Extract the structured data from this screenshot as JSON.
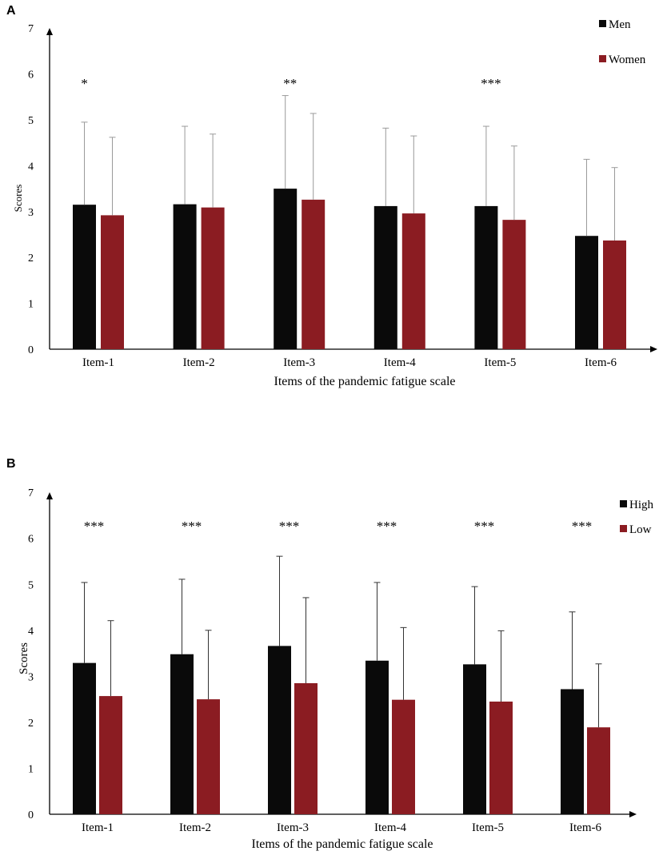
{
  "colors": {
    "series1": "#0a0a0a",
    "series2": "#8b1c22",
    "axis": "#000000",
    "errorbar_a": "#9a9a9a",
    "errorbar_b": "#333333"
  },
  "chart_data": [
    {
      "panel": "A",
      "type": "bar",
      "title": "",
      "xlabel": "Items of the pandemic fatigue scale",
      "ylabel": "Scores",
      "ylim": [
        0,
        7
      ],
      "yticks": [
        "0",
        "1",
        "2",
        "3",
        "4",
        "5",
        "6",
        "7"
      ],
      "categories": [
        "Item-1",
        "Item-2",
        "Item-3",
        "Item-4",
        "Item-5",
        "Item-6"
      ],
      "legend_position": "top-right",
      "series": [
        {
          "name": "Men",
          "values": [
            3.15,
            3.16,
            3.5,
            3.12,
            3.12,
            2.47
          ],
          "error_upper": [
            4.95,
            4.86,
            5.53,
            4.82,
            4.86,
            4.14
          ]
        },
        {
          "name": "Women",
          "values": [
            2.92,
            3.09,
            3.26,
            2.96,
            2.82,
            2.37
          ],
          "error_upper": [
            4.62,
            4.69,
            5.14,
            4.65,
            4.43,
            3.96
          ]
        }
      ],
      "annotations": [
        "*",
        "",
        "**",
        "",
        "***",
        ""
      ]
    },
    {
      "panel": "B",
      "type": "bar",
      "title": "",
      "xlabel": "Items of the pandemic fatigue scale",
      "ylabel": "Scores",
      "ylim": [
        0,
        7
      ],
      "yticks": [
        "0",
        "1",
        "2",
        "3",
        "4",
        "5",
        "6",
        "7"
      ],
      "categories": [
        "Item-1",
        "Item-2",
        "Item-3",
        "Item-4",
        "Item-5",
        "Item-6"
      ],
      "legend_position": "top-right",
      "series": [
        {
          "name": "High",
          "values": [
            3.29,
            3.48,
            3.66,
            3.34,
            3.26,
            2.72
          ],
          "error_upper": [
            5.04,
            5.11,
            5.61,
            5.04,
            4.95,
            4.4
          ]
        },
        {
          "name": "Low",
          "values": [
            2.57,
            2.5,
            2.85,
            2.49,
            2.45,
            1.89
          ],
          "error_upper": [
            4.21,
            4.0,
            4.71,
            4.06,
            3.99,
            3.27
          ]
        }
      ],
      "annotations": [
        "***",
        "***",
        "***",
        "***",
        "***",
        "***"
      ]
    }
  ]
}
